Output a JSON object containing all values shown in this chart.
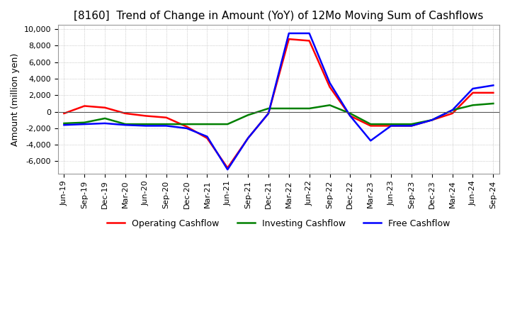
{
  "title": "[8160]  Trend of Change in Amount (YoY) of 12Mo Moving Sum of Cashflows",
  "ylabel": "Amount (million yen)",
  "x_labels": [
    "Jun-19",
    "Sep-19",
    "Dec-19",
    "Mar-20",
    "Jun-20",
    "Sep-20",
    "Dec-20",
    "Mar-21",
    "Jun-21",
    "Sep-21",
    "Dec-21",
    "Mar-22",
    "Jun-22",
    "Sep-22",
    "Dec-22",
    "Mar-23",
    "Jun-23",
    "Sep-23",
    "Dec-23",
    "Mar-24",
    "Jun-24",
    "Sep-24"
  ],
  "operating": [
    -200,
    700,
    500,
    -200,
    -500,
    -700,
    -1800,
    -3200,
    -6800,
    -3200,
    -200,
    8800,
    8600,
    3000,
    -500,
    -1700,
    -1700,
    -1700,
    -1000,
    -200,
    2300,
    2300
  ],
  "investing": [
    -1400,
    -1300,
    -800,
    -1500,
    -1500,
    -1500,
    -1500,
    -1500,
    -1500,
    -400,
    400,
    400,
    400,
    800,
    -200,
    -1500,
    -1500,
    -1500,
    -1000,
    200,
    800,
    1000
  ],
  "free": [
    -1600,
    -1500,
    -1400,
    -1600,
    -1700,
    -1700,
    -2000,
    -3000,
    -7000,
    -3200,
    -200,
    9500,
    9500,
    3500,
    -500,
    -3500,
    -1700,
    -1700,
    -1000,
    200,
    2800,
    3200
  ],
  "op_color": "#ff0000",
  "inv_color": "#008000",
  "free_color": "#0000ff",
  "ylim": [
    -7500,
    10500
  ],
  "ytick_positions": [
    -6000,
    -4000,
    -2000,
    0,
    2000,
    4000,
    6000,
    8000,
    10000
  ],
  "ytick_labels": [
    "-6,000",
    "-4,000",
    "-2,000",
    "0",
    "2,000",
    "4,000",
    "6,000",
    "8,000",
    "10,000"
  ],
  "bg_color": "#ffffff",
  "grid_color": "#aaaaaa",
  "title_fontsize": 11,
  "label_fontsize": 9,
  "tick_fontsize": 8,
  "line_width": 1.8
}
